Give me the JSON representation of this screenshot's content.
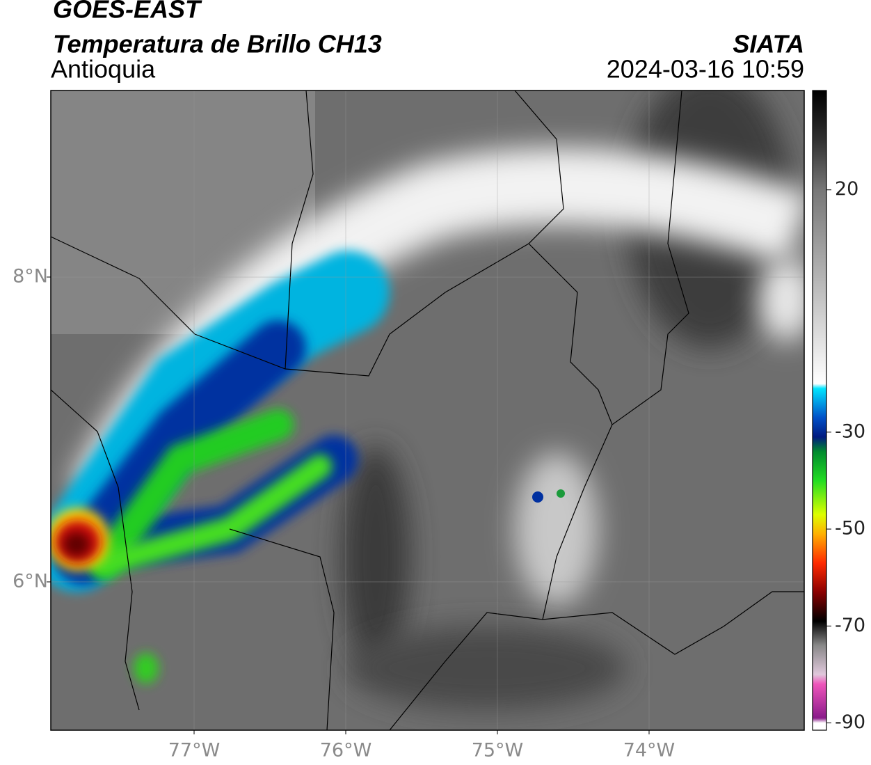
{
  "header": {
    "satellite": "GOES-EAST",
    "product": "Temperatura de Brillo CH13",
    "region": "Antioquia",
    "institution": "SIATA",
    "datetime": "2024-03-16 10:59"
  },
  "map": {
    "xlim": [
      -77.945,
      -72.977
    ],
    "ylim": [
      5.027,
      9.224
    ],
    "xticks": [
      {
        "value": -77,
        "label": "77°W"
      },
      {
        "value": -76,
        "label": "76°W"
      },
      {
        "value": -75,
        "label": "75°W"
      },
      {
        "value": -74,
        "label": "74°W"
      }
    ],
    "yticks": [
      {
        "value": 8,
        "label": "8°N"
      },
      {
        "value": 6,
        "label": "6°N"
      }
    ],
    "grid": true
  },
  "colorbar": {
    "lim": [
      -91.5,
      40.5
    ],
    "ticks": [
      20,
      -30,
      -50,
      -70,
      -90
    ],
    "stops": [
      {
        "value": 40.5,
        "color": "#000000"
      },
      {
        "value": 30,
        "color": "#333333"
      },
      {
        "value": 20,
        "color": "#777777"
      },
      {
        "value": 0,
        "color": "#bbbbbb"
      },
      {
        "value": -20,
        "color": "#ffffff"
      },
      {
        "value": -21,
        "color": "#00e5ff"
      },
      {
        "value": -27,
        "color": "#0050c8"
      },
      {
        "value": -31,
        "color": "#001a80"
      },
      {
        "value": -34,
        "color": "#008a2e"
      },
      {
        "value": -40,
        "color": "#22dd22"
      },
      {
        "value": -47,
        "color": "#ddff00"
      },
      {
        "value": -51,
        "color": "#ffb000"
      },
      {
        "value": -57,
        "color": "#ff2a00"
      },
      {
        "value": -63,
        "color": "#8a0000"
      },
      {
        "value": -69,
        "color": "#000000"
      },
      {
        "value": -74,
        "color": "#888888"
      },
      {
        "value": -80,
        "color": "#e0c8dc"
      },
      {
        "value": -82,
        "color": "#ee55bb"
      },
      {
        "value": -89,
        "color": "#8a1a8a"
      },
      {
        "value": -90,
        "color": "#ffffff"
      },
      {
        "value": -91.5,
        "color": "#ffffff"
      }
    ]
  }
}
